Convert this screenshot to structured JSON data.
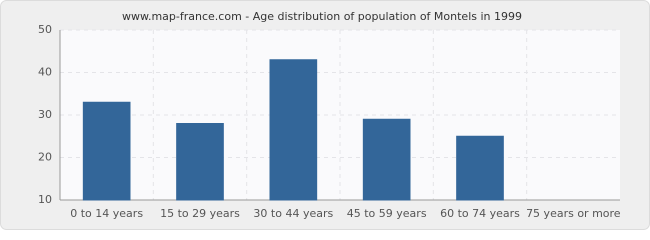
{
  "chart_data": {
    "type": "bar",
    "title": "www.map-france.com - Age distribution of population of Montels in 1999",
    "categories": [
      "0 to 14 years",
      "15 to 29 years",
      "30 to 44 years",
      "45 to 59 years",
      "60 to 74 years",
      "75 years or more"
    ],
    "values": [
      33,
      28,
      43,
      29,
      25,
      10
    ],
    "color": "#336699",
    "ylim": [
      10,
      50
    ],
    "yticks": [
      10,
      20,
      30,
      40,
      50
    ],
    "grid": true
  }
}
